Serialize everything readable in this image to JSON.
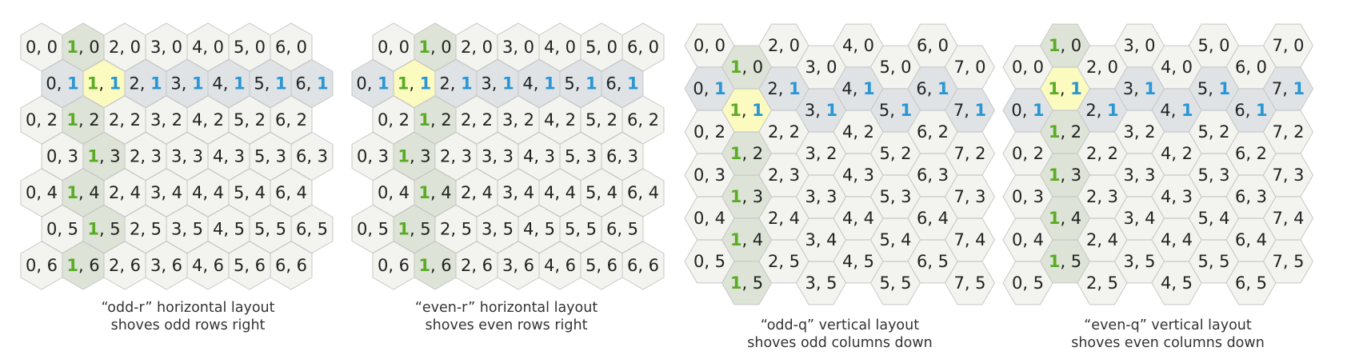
{
  "colors": {
    "hex_fill": "#f3f3ef",
    "hex_stroke": "#c8c8c8",
    "column_highlight": "#dde3d6",
    "row_highlight": "#dfe3e6",
    "selected": "#fbfbbf",
    "col_text": "#5cab26",
    "row_text": "#2a96d4",
    "text": "#222222"
  },
  "panels": [
    {
      "id": "odd-r",
      "orientation": "pointy",
      "offset": "odd-r",
      "cols": 7,
      "rows": 7,
      "selected": [
        1,
        1
      ],
      "caption_line1": "“odd-r” horizontal layout",
      "caption_line2": "shoves odd rows right"
    },
    {
      "id": "even-r",
      "orientation": "pointy",
      "offset": "even-r",
      "cols": 7,
      "rows": 7,
      "selected": [
        1,
        1
      ],
      "caption_line1": "“even-r” horizontal layout",
      "caption_line2": "shoves even rows right"
    },
    {
      "id": "odd-q",
      "orientation": "flat",
      "offset": "odd-q",
      "cols": 8,
      "rows": 6,
      "selected": [
        1,
        1
      ],
      "caption_line1": "“odd-q” vertical layout",
      "caption_line2": "shoves odd columns down"
    },
    {
      "id": "even-q",
      "orientation": "flat",
      "offset": "even-q",
      "cols": 8,
      "rows": 6,
      "selected": [
        1,
        1
      ],
      "caption_line1": "“even-q” vertical layout",
      "caption_line2": "shoves even columns down"
    }
  ]
}
